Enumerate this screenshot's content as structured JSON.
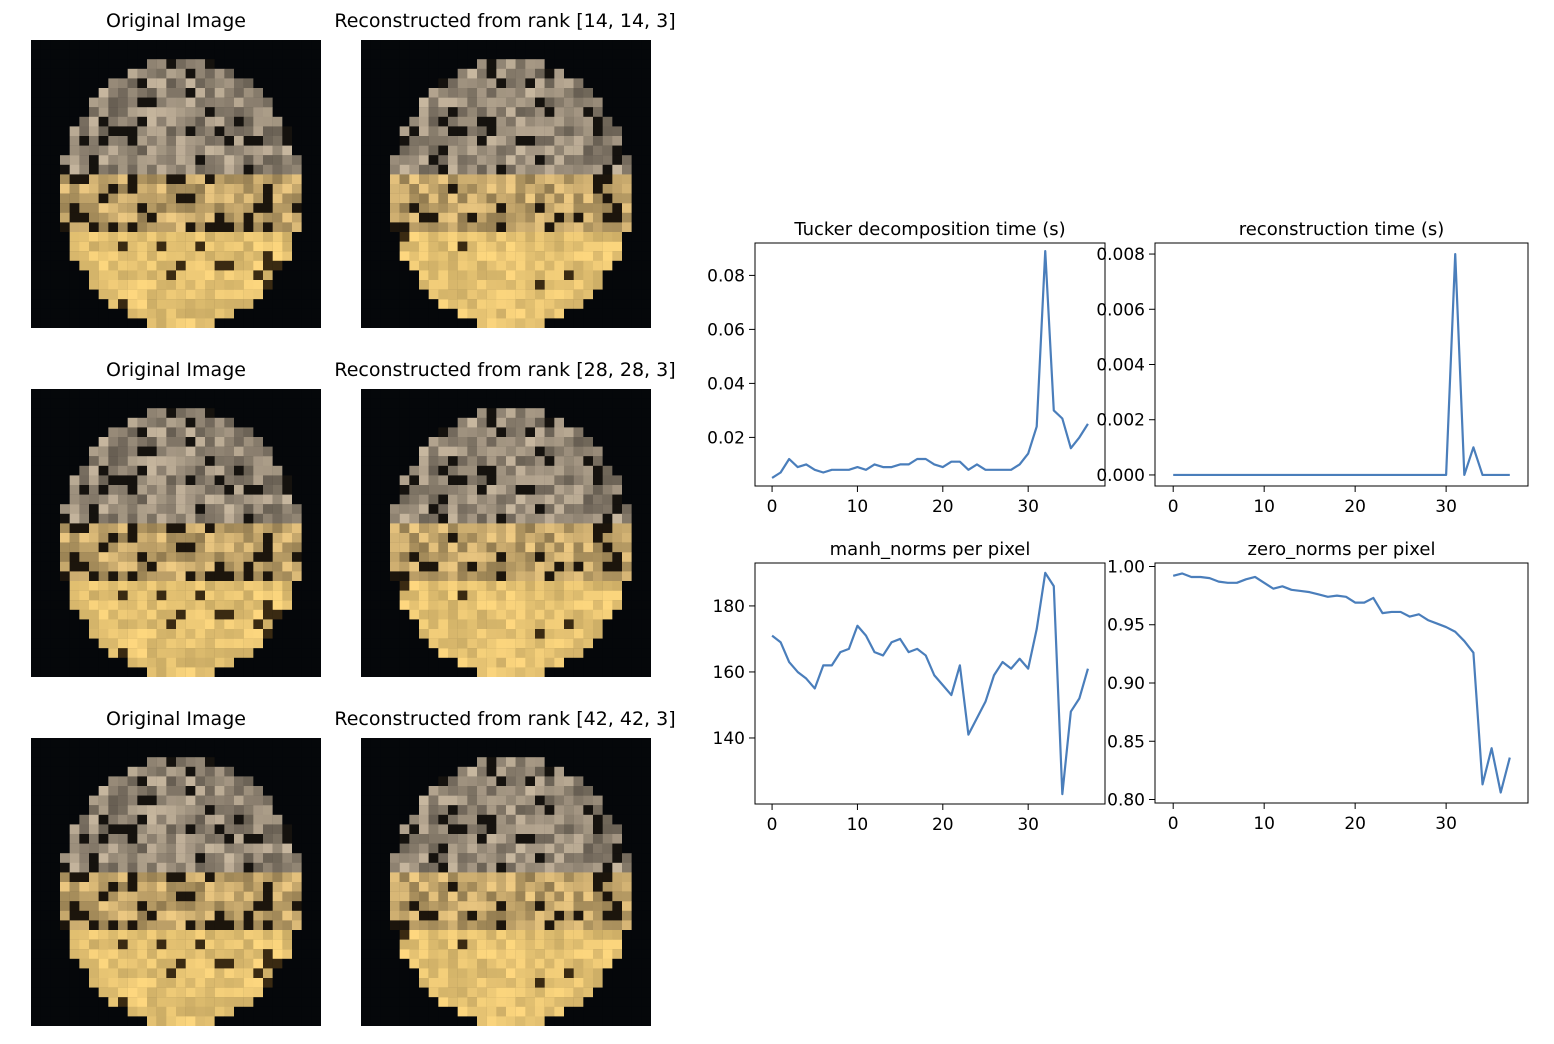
{
  "image_grid": {
    "rows": [
      {
        "original_title": "Original Image",
        "reconstructed_title": "Reconstructed from rank [14, 14, 3]"
      },
      {
        "original_title": "Original Image",
        "reconstructed_title": "Reconstructed from rank [28, 28, 3]"
      },
      {
        "original_title": "Original Image",
        "reconstructed_title": "Reconstructed from rank [42, 42, 3]"
      }
    ]
  },
  "chart_data": [
    {
      "type": "line",
      "title": "Tucker decomposition time (s)",
      "xlabel": "",
      "ylabel": "",
      "xlim": [
        -2,
        39
      ],
      "ylim": [
        0.002,
        0.092
      ],
      "xticks": [
        0,
        10,
        20,
        30
      ],
      "yticks": [
        0.02,
        0.04,
        0.06,
        0.08
      ],
      "ytick_labels": [
        "0.02",
        "0.04",
        "0.06",
        "0.08"
      ],
      "color": "#4a7ebb",
      "grid": false,
      "x": [
        0,
        1,
        2,
        3,
        4,
        5,
        6,
        7,
        8,
        9,
        10,
        11,
        12,
        13,
        14,
        15,
        16,
        17,
        18,
        19,
        20,
        21,
        22,
        23,
        24,
        25,
        26,
        27,
        28,
        29,
        30,
        31,
        32,
        33,
        34,
        35,
        36,
        37
      ],
      "y": [
        0.005,
        0.007,
        0.012,
        0.009,
        0.01,
        0.008,
        0.007,
        0.008,
        0.008,
        0.008,
        0.009,
        0.008,
        0.01,
        0.009,
        0.009,
        0.01,
        0.01,
        0.012,
        0.012,
        0.01,
        0.009,
        0.011,
        0.011,
        0.008,
        0.01,
        0.008,
        0.008,
        0.008,
        0.008,
        0.01,
        0.014,
        0.024,
        0.089,
        0.03,
        0.027,
        0.016,
        0.02,
        0.025
      ]
    },
    {
      "type": "line",
      "title": "reconstruction time (s)",
      "xlabel": "",
      "ylabel": "",
      "xlim": [
        -2,
        39
      ],
      "ylim": [
        -0.0004,
        0.0084
      ],
      "xticks": [
        0,
        10,
        20,
        30
      ],
      "yticks": [
        0.0,
        0.002,
        0.004,
        0.006,
        0.008
      ],
      "ytick_labels": [
        "0.000",
        "0.002",
        "0.004",
        "0.006",
        "0.008"
      ],
      "color": "#4a7ebb",
      "grid": false,
      "x": [
        0,
        1,
        2,
        3,
        4,
        5,
        6,
        7,
        8,
        9,
        10,
        11,
        12,
        13,
        14,
        15,
        16,
        17,
        18,
        19,
        20,
        21,
        22,
        23,
        24,
        25,
        26,
        27,
        28,
        29,
        30,
        31,
        32,
        33,
        34,
        35,
        36,
        37
      ],
      "y": [
        0,
        0,
        0,
        0,
        0,
        0,
        0,
        0,
        0,
        0,
        0,
        0,
        0,
        0,
        0,
        0,
        0,
        0,
        0,
        0,
        0,
        0,
        0,
        0,
        0,
        0,
        0,
        0,
        0,
        0,
        0,
        0.008,
        0,
        0.001,
        0,
        0,
        0,
        0
      ]
    },
    {
      "type": "line",
      "title": "manh_norms per pixel",
      "xlabel": "",
      "ylabel": "",
      "xlim": [
        -2,
        39
      ],
      "ylim": [
        120,
        193
      ],
      "xticks": [
        0,
        10,
        20,
        30
      ],
      "yticks": [
        140,
        160,
        180
      ],
      "ytick_labels": [
        "140",
        "160",
        "180"
      ],
      "color": "#4a7ebb",
      "grid": false,
      "x": [
        0,
        1,
        2,
        3,
        4,
        5,
        6,
        7,
        8,
        9,
        10,
        11,
        12,
        13,
        14,
        15,
        16,
        17,
        18,
        19,
        20,
        21,
        22,
        23,
        24,
        25,
        26,
        27,
        28,
        29,
        30,
        31,
        32,
        33,
        34,
        35,
        36,
        37
      ],
      "y": [
        171,
        169,
        163,
        160,
        158,
        155,
        162,
        162,
        166,
        167,
        174,
        171,
        166,
        165,
        169,
        170,
        166,
        167,
        165,
        159,
        156,
        153,
        162,
        141,
        146,
        151,
        159,
        163,
        161,
        164,
        161,
        173,
        190,
        186,
        123,
        148,
        152,
        161
      ]
    },
    {
      "type": "line",
      "title": "zero_norms per pixel",
      "xlabel": "",
      "ylabel": "",
      "xlim": [
        -2,
        39
      ],
      "ylim": [
        0.797,
        1.003
      ],
      "xticks": [
        0,
        10,
        20,
        30
      ],
      "yticks": [
        0.8,
        0.85,
        0.9,
        0.95,
        1.0
      ],
      "ytick_labels": [
        "0.80",
        "0.85",
        "0.90",
        "0.95",
        "1.00"
      ],
      "color": "#4a7ebb",
      "grid": false,
      "x": [
        0,
        1,
        2,
        3,
        4,
        5,
        6,
        7,
        8,
        9,
        10,
        11,
        12,
        13,
        14,
        15,
        16,
        17,
        18,
        19,
        20,
        21,
        22,
        23,
        24,
        25,
        26,
        27,
        28,
        29,
        30,
        31,
        32,
        33,
        34,
        35,
        36,
        37
      ],
      "y": [
        0.992,
        0.994,
        0.991,
        0.991,
        0.99,
        0.987,
        0.986,
        0.986,
        0.989,
        0.991,
        0.986,
        0.981,
        0.983,
        0.98,
        0.979,
        0.978,
        0.976,
        0.974,
        0.975,
        0.974,
        0.969,
        0.969,
        0.973,
        0.96,
        0.961,
        0.961,
        0.957,
        0.959,
        0.954,
        0.951,
        0.948,
        0.944,
        0.936,
        0.926,
        0.813,
        0.844,
        0.806,
        0.836
      ]
    }
  ]
}
